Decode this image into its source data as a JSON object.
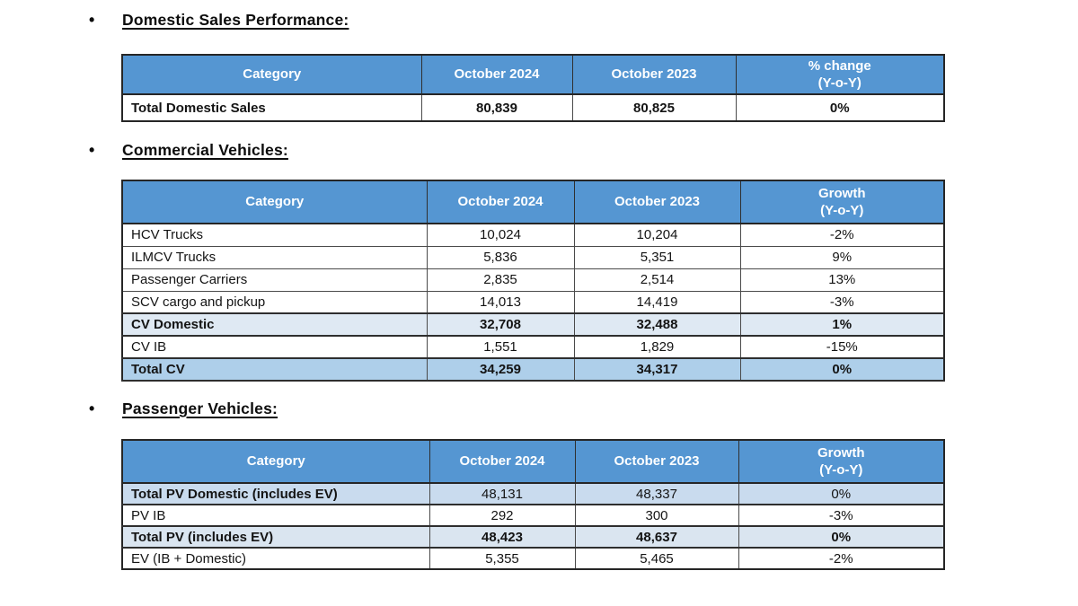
{
  "colors": {
    "table_header_bg": "#5596D2",
    "table_header_text": "#FFFFFF",
    "border_dark": "#262626",
    "highlight_light_blue": "#DFE9F3",
    "highlight_medium_blue": "#AECFEA",
    "highlight_pv_domestic_blue": "#C9DBEE",
    "highlight_pv_total_blue": "#DAE5F0"
  },
  "sections": [
    {
      "bullet": "•",
      "heading": "Domestic Sales Performance:",
      "table": {
        "columns": [
          "Category",
          "October 2024",
          "October 2023",
          "% change\n(Y-o-Y)"
        ],
        "rows": [
          {
            "cells": [
              "Total Domestic Sales",
              "80,839",
              "80,825",
              "0%"
            ],
            "style": "bold",
            "bg": "#FFFFFF",
            "highlight": false
          }
        ]
      }
    },
    {
      "bullet": "•",
      "heading": "Commercial Vehicles:",
      "table": {
        "columns": [
          "Category",
          "October 2024",
          "October 2023",
          "Growth\n(Y-o-Y)"
        ],
        "rows": [
          {
            "cells": [
              "HCV Trucks",
              "10,024",
              "10,204",
              "-2%"
            ],
            "style": "normal",
            "bg": "#FFFFFF",
            "highlight": false
          },
          {
            "cells": [
              "ILMCV Trucks",
              "5,836",
              "5,351",
              "9%"
            ],
            "style": "normal",
            "bg": "#FFFFFF",
            "highlight": false
          },
          {
            "cells": [
              "Passenger Carriers",
              "2,835",
              "2,514",
              "13%"
            ],
            "style": "normal",
            "bg": "#FFFFFF",
            "highlight": false
          },
          {
            "cells": [
              "SCV cargo and pickup",
              "14,013",
              "14,419",
              "-3%"
            ],
            "style": "normal",
            "bg": "#FFFFFF",
            "highlight": false
          },
          {
            "cells": [
              "CV Domestic",
              "32,708",
              "32,488",
              "1%"
            ],
            "style": "bold",
            "bg": "#DFE9F3",
            "highlight": true
          },
          {
            "cells": [
              "CV IB",
              "1,551",
              "1,829",
              "-15%"
            ],
            "style": "normal",
            "bg": "#FFFFFF",
            "highlight": false
          },
          {
            "cells": [
              "Total CV",
              "34,259",
              "34,317",
              "0%"
            ],
            "style": "bold",
            "bg": "#AECFEA",
            "highlight": true
          }
        ]
      }
    },
    {
      "bullet": "•",
      "heading": "Passenger Vehicles:",
      "table": {
        "columns": [
          "Category",
          "October 2024",
          "October 2023",
          "Growth\n(Y-o-Y)"
        ],
        "rows": [
          {
            "cells": [
              "Total PV Domestic (includes EV)",
              "48,131",
              "48,337",
              "0%"
            ],
            "style": "bold-label",
            "bg": "#C9DBEE",
            "highlight": true
          },
          {
            "cells": [
              "PV IB",
              "292",
              "300",
              "-3%"
            ],
            "style": "normal",
            "bg": "#FFFFFF",
            "highlight": false
          },
          {
            "cells": [
              "Total PV (includes EV)",
              "48,423",
              "48,637",
              "0%"
            ],
            "style": "bold",
            "bg": "#DAE5F0",
            "highlight": true
          },
          {
            "cells": [
              "EV (IB + Domestic)",
              "5,355",
              "5,465",
              "-2%"
            ],
            "style": "normal",
            "bg": "#FFFFFF",
            "highlight": false
          }
        ]
      }
    }
  ]
}
